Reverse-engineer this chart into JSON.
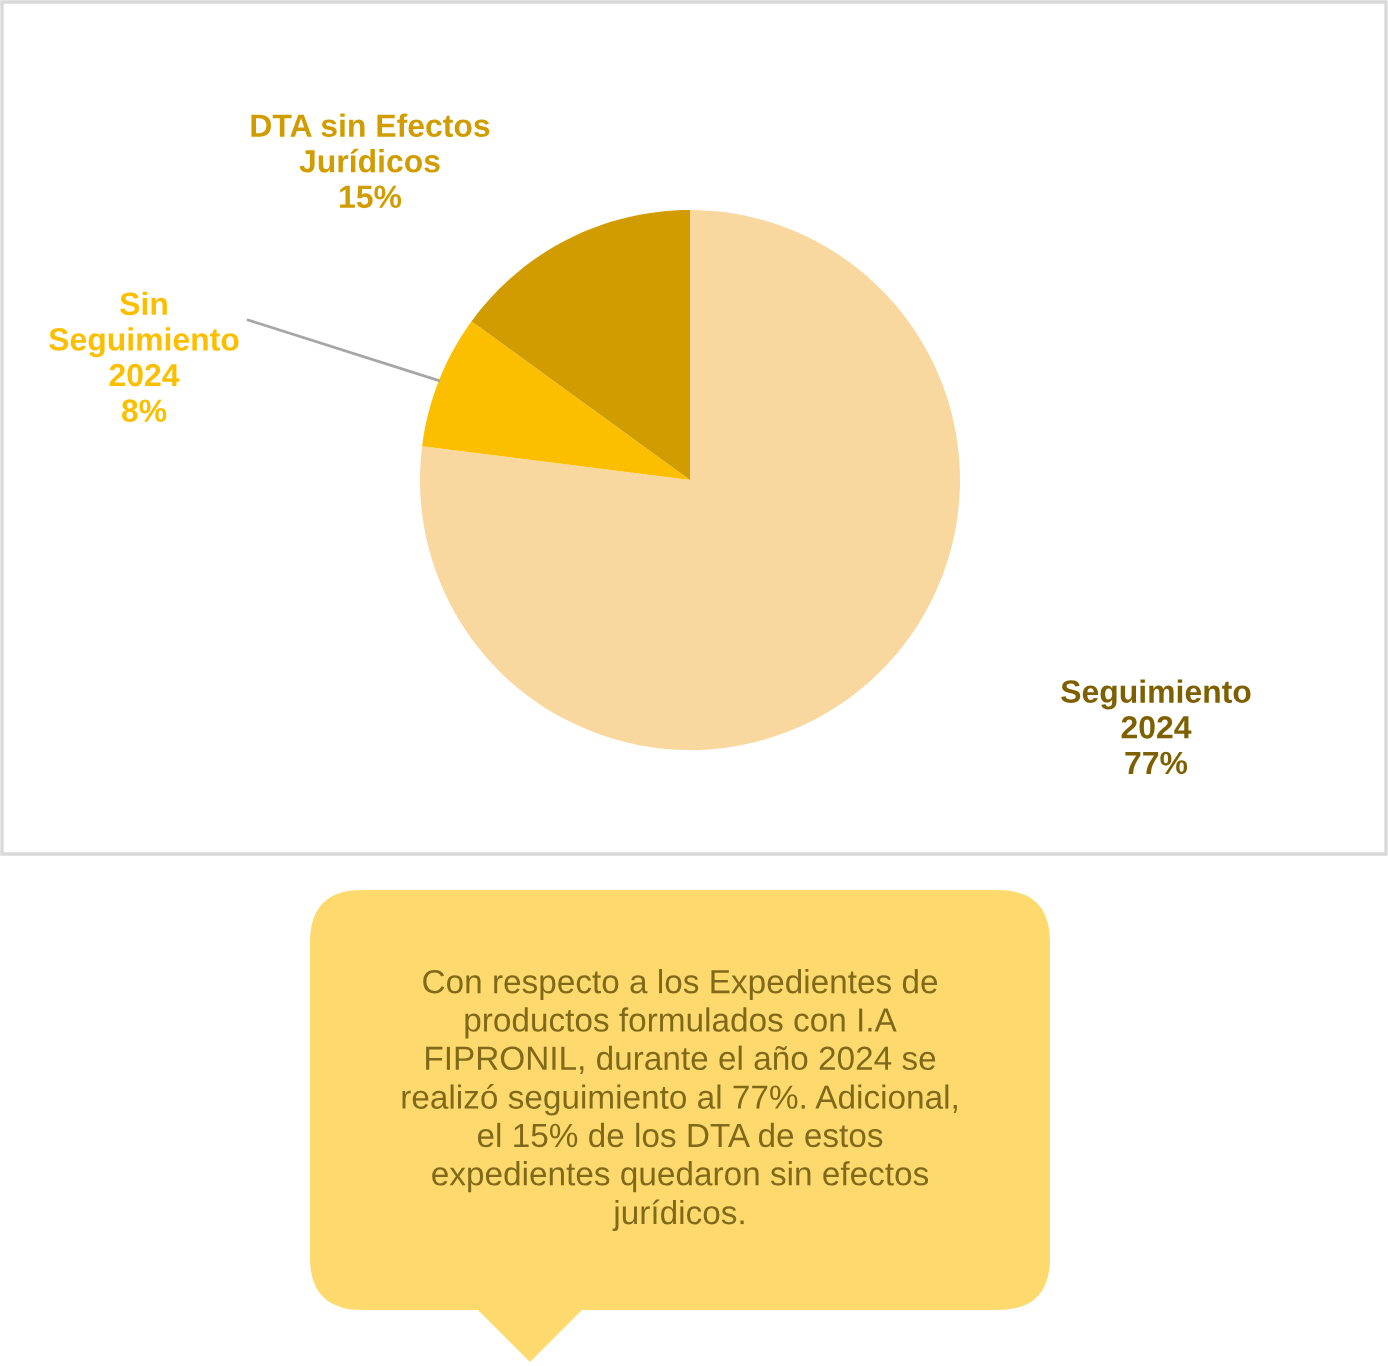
{
  "chart_data": {
    "type": "pie",
    "categories": [
      "Seguimiento\n2024",
      "Sin\nSeguimiento\n2024",
      "DTA sin Efectos\nJurídicos"
    ],
    "values": [
      77,
      8,
      15
    ],
    "value_labels": [
      "77%",
      "8%",
      "15%"
    ],
    "colors": [
      "#F9D89F",
      "#FBBF00",
      "#D19C00"
    ],
    "annotations": [
      "Con respecto a los Expedientes de\nproductos formulados con I.A\nFIPRONIL, durante el año 2024 se\nrealizó seguimiento al 77%. Adicional,\nel 15% de los DTA de estos\nexpedientes quedaron sin efectos\njurídicos."
    ]
  }
}
